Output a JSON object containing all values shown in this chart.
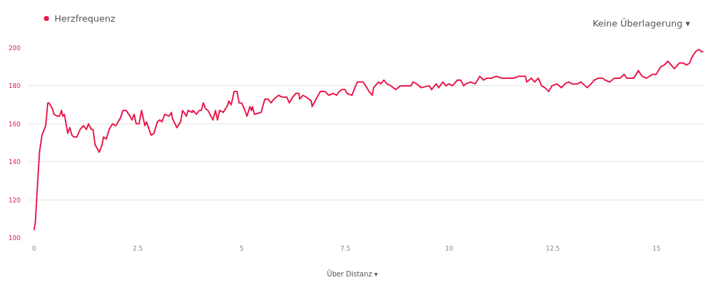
{
  "chart_data": {
    "type": "line",
    "x": [
      0,
      0.03,
      0.08,
      0.13,
      0.19,
      0.28,
      0.33,
      0.36,
      0.44,
      0.48,
      0.56,
      0.61,
      0.66,
      0.69,
      0.73,
      0.81,
      0.86,
      0.91,
      0.96,
      1.03,
      1.11,
      1.19,
      1.26,
      1.31,
      1.38,
      1.42,
      1.47,
      1.57,
      1.64,
      1.67,
      1.74,
      1.81,
      1.89,
      1.97,
      2.08,
      2.14,
      2.19,
      2.22,
      2.31,
      2.36,
      2.41,
      2.46,
      2.53,
      2.59,
      2.67,
      2.71,
      2.82,
      2.89,
      2.97,
      3.03,
      3.08,
      3.15,
      3.25,
      3.31,
      3.33,
      3.44,
      3.53,
      3.58,
      3.67,
      3.71,
      3.81,
      3.83,
      3.91,
      3.98,
      4.03,
      4.08,
      4.13,
      4.19,
      4.31,
      4.37,
      4.42,
      4.47,
      4.56,
      4.67,
      4.69,
      4.75,
      4.82,
      4.89,
      4.94,
      5.0,
      5.08,
      5.13,
      5.2,
      5.24,
      5.26,
      5.31,
      5.47,
      5.56,
      5.64,
      5.71,
      5.78,
      5.89,
      5.98,
      6.09,
      6.15,
      6.23,
      6.31,
      6.38,
      6.4,
      6.48,
      6.56,
      6.68,
      6.7,
      6.82,
      6.9,
      7.01,
      7.1,
      7.21,
      7.29,
      7.35,
      7.42,
      7.49,
      7.54,
      7.66,
      7.73,
      7.79,
      7.93,
      8.02,
      8.07,
      8.15,
      8.18,
      8.3,
      8.35,
      8.43,
      8.5,
      8.6,
      8.71,
      8.83,
      8.94,
      9.08,
      9.13,
      9.22,
      9.33,
      9.52,
      9.58,
      9.69,
      9.75,
      9.85,
      9.92,
      10.0,
      10.08,
      10.2,
      10.28,
      10.35,
      10.4,
      10.52,
      10.63,
      10.74,
      10.83,
      10.91,
      11.02,
      11.13,
      11.28,
      11.42,
      11.56,
      11.67,
      11.84,
      11.87,
      11.98,
      12.06,
      12.15,
      12.23,
      12.31,
      12.4,
      12.48,
      12.6,
      12.71,
      12.79,
      12.88,
      12.96,
      13.1,
      13.18,
      13.33,
      13.42,
      13.5,
      13.59,
      13.7,
      13.76,
      13.87,
      13.98,
      14.12,
      14.22,
      14.28,
      14.45,
      14.56,
      14.65,
      14.76,
      14.9,
      14.99,
      15.1,
      15.19,
      15.27,
      15.35,
      15.43,
      15.55,
      15.63,
      15.73,
      15.8,
      15.85,
      15.94,
      16.0,
      16.03,
      16.08,
      16.13
    ],
    "series": [
      {
        "name": "Herzfrequenz",
        "color": "#e8194a",
        "values": [
          104,
          108,
          127,
          145,
          154,
          159,
          171,
          171,
          168,
          165,
          164,
          164,
          167,
          164,
          165,
          155,
          158,
          154,
          153,
          153,
          157,
          159,
          157,
          160,
          157,
          157,
          149,
          145,
          149,
          153,
          152,
          157,
          160,
          159,
          163,
          167,
          167,
          167,
          164,
          162,
          165,
          160,
          160,
          167,
          159,
          161,
          154,
          155,
          161,
          162,
          161,
          165,
          164,
          166,
          163,
          158,
          161,
          167,
          164,
          167,
          166,
          167,
          165,
          167,
          167,
          171,
          168,
          167,
          162,
          167,
          162,
          167,
          166,
          170,
          172,
          170,
          177,
          177,
          171,
          171,
          167,
          164,
          169,
          167,
          169,
          165,
          166,
          173,
          173,
          171,
          173,
          175,
          174,
          174,
          171,
          174,
          176,
          176,
          173,
          175,
          174,
          172,
          169,
          174,
          177,
          177,
          175,
          176,
          175,
          177,
          178,
          178,
          176,
          175,
          179,
          182,
          182,
          179,
          177,
          175,
          179,
          182,
          181,
          183,
          181,
          180,
          178,
          180,
          180,
          180,
          182,
          181,
          179,
          180,
          178,
          181,
          179,
          182,
          180,
          181,
          180,
          183,
          183,
          180,
          181,
          182,
          181,
          185,
          183,
          184,
          184,
          185,
          184,
          184,
          184,
          185,
          185,
          182,
          184,
          182,
          184,
          180,
          179,
          177,
          180,
          181,
          179,
          181,
          182,
          181,
          181,
          182,
          179,
          181,
          183,
          184,
          184,
          183,
          182,
          184,
          184,
          186,
          184,
          184,
          188,
          185,
          184,
          186,
          186,
          190,
          191,
          193,
          191,
          189,
          192,
          192,
          191,
          192,
          195,
          198,
          199,
          199,
          198,
          198
        ]
      }
    ],
    "xlim": [
      -0.14,
      16.13
    ],
    "xticks": [
      0,
      {
        "value": 2.5,
        "label": "2.5"
      },
      5,
      {
        "value": 7.5,
        "label": "7.5"
      },
      10,
      {
        "value": 12.5,
        "label": "12.5"
      },
      15
    ],
    "ylim": [
      100,
      200
    ],
    "yticks": [
      100,
      120,
      140,
      160,
      180,
      200
    ],
    "grid": "y",
    "legend": "top left",
    "marker": "none",
    "line_style": "solid",
    "annotations": [
      "Keine Überlagerung ▾",
      "Über Distanz ▾"
    ]
  }
}
